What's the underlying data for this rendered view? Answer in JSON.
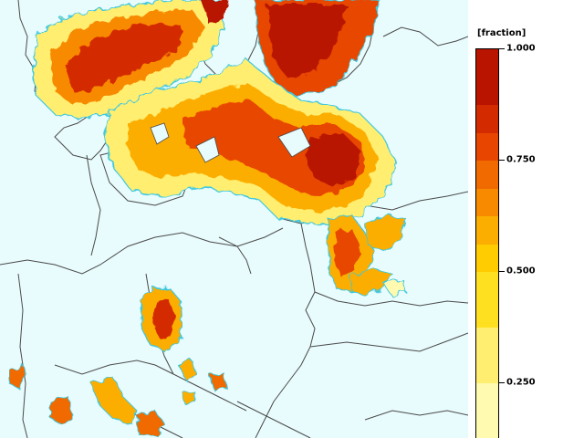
{
  "legend": {
    "unit_label": "[fraction]",
    "ticks": [
      {
        "value": 1.0,
        "label": "1.000"
      },
      {
        "value": 0.75,
        "label": "0.750"
      },
      {
        "value": 0.5,
        "label": "0.500"
      },
      {
        "value": 0.25,
        "label": "0.250"
      }
    ],
    "range": [
      0.125,
      1.0
    ],
    "bands": [
      {
        "from": 0.875,
        "to": 1.0,
        "color": "#b81400"
      },
      {
        "from": 0.8125,
        "to": 0.875,
        "color": "#d42a00"
      },
      {
        "from": 0.75,
        "to": 0.8125,
        "color": "#e84600"
      },
      {
        "from": 0.6875,
        "to": 0.75,
        "color": "#f06a00"
      },
      {
        "from": 0.625,
        "to": 0.6875,
        "color": "#f88a00"
      },
      {
        "from": 0.5625,
        "to": 0.625,
        "color": "#fcae00"
      },
      {
        "from": 0.5,
        "to": 0.5625,
        "color": "#fecc00"
      },
      {
        "from": 0.375,
        "to": 0.5,
        "color": "#ffe020"
      },
      {
        "from": 0.25,
        "to": 0.375,
        "color": "#ffee70"
      },
      {
        "from": 0.125,
        "to": 0.25,
        "color": "#fffab0"
      }
    ]
  },
  "map": {
    "ocean_color": "#e8fbfd",
    "border_color": "#4a4a4a",
    "contour_color": "#3ec8e0"
  }
}
